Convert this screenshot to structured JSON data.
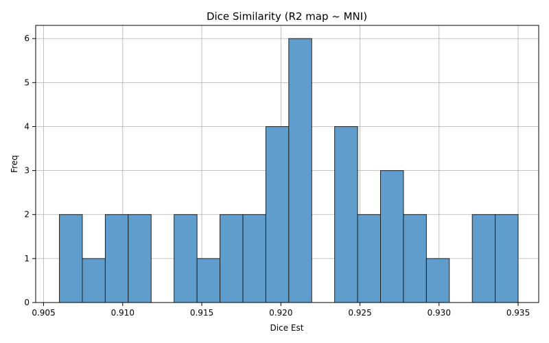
{
  "chart_data": {
    "type": "bar",
    "title": "Dice Similarity (R2 map ~ MNI)",
    "xlabel": "Dice Est",
    "ylabel": "Freq",
    "xlim": [
      0.9045,
      0.9363
    ],
    "ylim": [
      0,
      6.3
    ],
    "grid": true,
    "bar_color": "#5f9ecc",
    "edge_color": "#1f1f1f",
    "bin_edges": [
      0.906,
      0.90745,
      0.9089,
      0.91035,
      0.9118,
      0.91325,
      0.9147,
      0.91615,
      0.9176,
      0.91905,
      0.9205,
      0.92195,
      0.9234,
      0.92485,
      0.9263,
      0.92775,
      0.9292,
      0.93065,
      0.9321,
      0.93355,
      0.935
    ],
    "values": [
      2,
      1,
      2,
      2,
      0,
      2,
      1,
      2,
      2,
      4,
      6,
      0,
      4,
      2,
      3,
      2,
      1,
      0,
      2,
      2
    ],
    "xticks": [
      {
        "value": 0.905,
        "label": "0.905"
      },
      {
        "value": 0.91,
        "label": "0.910"
      },
      {
        "value": 0.915,
        "label": "0.915"
      },
      {
        "value": 0.92,
        "label": "0.920"
      },
      {
        "value": 0.925,
        "label": "0.925"
      },
      {
        "value": 0.93,
        "label": "0.930"
      },
      {
        "value": 0.935,
        "label": "0.935"
      }
    ],
    "yticks": [
      {
        "value": 0,
        "label": "0"
      },
      {
        "value": 1,
        "label": "1"
      },
      {
        "value": 2,
        "label": "2"
      },
      {
        "value": 3,
        "label": "3"
      },
      {
        "value": 4,
        "label": "4"
      },
      {
        "value": 5,
        "label": "5"
      },
      {
        "value": 6,
        "label": "6"
      }
    ]
  }
}
